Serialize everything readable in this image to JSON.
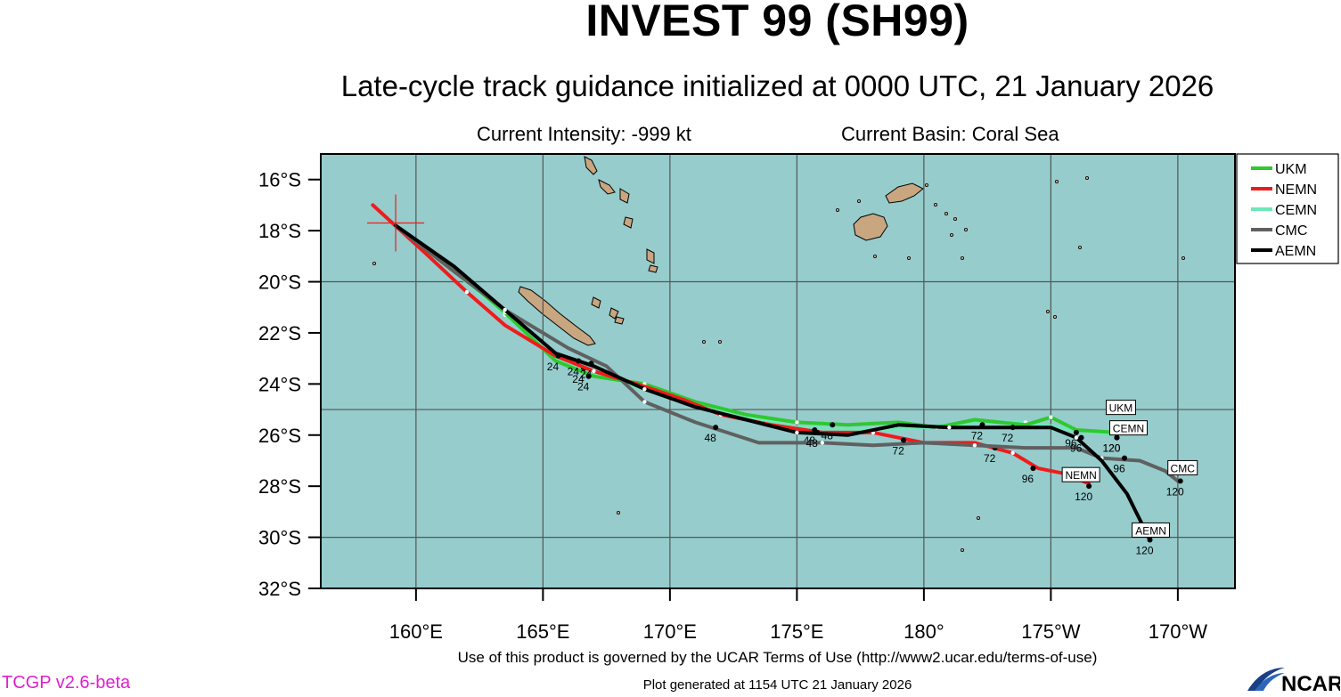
{
  "header": {
    "title": "INVEST 99 (SH99)",
    "subtitle": "Late-cycle track guidance initialized at 0000 UTC, 21 January 2026",
    "current_intensity": "Current Intensity: -999 kt",
    "current_basin": "Current Basin: Coral Sea"
  },
  "footer": {
    "terms": "Use of this product is governed by the UCAR Terms of Use (http://www2.ucar.edu/terms-of-use)",
    "version": "TCGP v2.6-beta",
    "generated": "Plot generated at 1154 UTC   21 January 2026",
    "logo_text": "NCAR"
  },
  "colors": {
    "ocean": "#96cccc",
    "land": "#c8a680",
    "grid": "#555555",
    "version_text": "#e020d0"
  },
  "map": {
    "lon_range": [
      156.25,
      192.25
    ],
    "lat_range": [
      -32.0,
      -15.0
    ],
    "lat_labels": [
      {
        "lat": -16,
        "label": "16°S"
      },
      {
        "lat": -18,
        "label": "18°S"
      },
      {
        "lat": -20,
        "label": "20°S"
      },
      {
        "lat": -22,
        "label": "22°S"
      },
      {
        "lat": -24,
        "label": "24°S"
      },
      {
        "lat": -26,
        "label": "26°S"
      },
      {
        "lat": -28,
        "label": "28°S"
      },
      {
        "lat": -30,
        "label": "30°S"
      },
      {
        "lat": -32,
        "label": "32°S"
      }
    ],
    "lon_labels": [
      {
        "lon": 160,
        "label": "160°E"
      },
      {
        "lon": 165,
        "label": "165°E"
      },
      {
        "lon": 170,
        "label": "170°E"
      },
      {
        "lon": 175,
        "label": "175°E"
      },
      {
        "lon": 180,
        "label": "180°"
      },
      {
        "lon": 185,
        "label": "175°W"
      },
      {
        "lon": 190,
        "label": "170°W"
      }
    ],
    "current_position": {
      "lon": 159.2,
      "lat": -17.7
    }
  },
  "legend": [
    {
      "name": "UKM",
      "color": "#30c830"
    },
    {
      "name": "NEMN",
      "color": "#ee1c1c"
    },
    {
      "name": "CEMN",
      "color": "#6ee8b8"
    },
    {
      "name": "CMC",
      "color": "#606060"
    },
    {
      "name": "AEMN",
      "color": "#000000"
    }
  ],
  "tracks": [
    {
      "name": "CEMN",
      "color": "#6ee8b8",
      "end_label": "CEMN",
      "points": [
        [
          159.2,
          -17.8
        ],
        [
          161.5,
          -19.6
        ],
        [
          163.5,
          -21.3
        ],
        [
          165.5,
          -23.0
        ],
        [
          167,
          -23.6
        ],
        [
          169,
          -24.2
        ],
        [
          172,
          -25.0
        ],
        [
          175,
          -25.7
        ],
        [
          178,
          -25.8
        ],
        [
          180,
          -25.7
        ],
        [
          182,
          -25.5
        ],
        [
          184,
          -25.5
        ],
        [
          186,
          -25.8
        ],
        [
          187.6,
          -26.0
        ]
      ],
      "hour_markers": [
        {
          "hour": 24,
          "lon": 166.6,
          "lat": -23.4,
          "label": "24"
        },
        {
          "hour": 120,
          "lon": 187.6,
          "lat": -26.1,
          "label": "120"
        }
      ]
    },
    {
      "name": "UKM",
      "color": "#30c830",
      "end_label": "UKM",
      "points": [
        [
          159.2,
          -17.8
        ],
        [
          161.5,
          -19.5
        ],
        [
          163.5,
          -21.2
        ],
        [
          165.5,
          -23.1
        ],
        [
          167,
          -23.7
        ],
        [
          169,
          -24.0
        ],
        [
          171,
          -24.7
        ],
        [
          173,
          -25.2
        ],
        [
          175,
          -25.5
        ],
        [
          177,
          -25.6
        ],
        [
          179,
          -25.5
        ],
        [
          180.5,
          -25.7
        ],
        [
          182,
          -25.4
        ],
        [
          184,
          -25.6
        ],
        [
          185,
          -25.3
        ],
        [
          186,
          -25.8
        ],
        [
          187.6,
          -25.9
        ]
      ],
      "hour_markers": [
        {
          "hour": 24,
          "lon": 166.8,
          "lat": -23.7,
          "label": "24"
        },
        {
          "hour": 48,
          "lon": 176.4,
          "lat": -25.6,
          "label": "48"
        },
        {
          "hour": 72,
          "lon": 182.3,
          "lat": -25.6,
          "label": "72"
        },
        {
          "hour": 96,
          "lon": 186.0,
          "lat": -25.9,
          "label": "96"
        },
        {
          "hour": 120,
          "lon": 187.6,
          "lat": -26.1,
          "label": "120"
        }
      ]
    },
    {
      "name": "NEMN",
      "color": "#ee1c1c",
      "end_label": "NEMN",
      "points": [
        [
          158.3,
          -17.0
        ],
        [
          160.5,
          -19.0
        ],
        [
          162,
          -20.4
        ],
        [
          163.5,
          -21.7
        ],
        [
          165.5,
          -22.9
        ],
        [
          167,
          -23.5
        ],
        [
          169,
          -24.1
        ],
        [
          170.5,
          -24.6
        ],
        [
          172,
          -25.2
        ],
        [
          174,
          -25.6
        ],
        [
          176,
          -25.9
        ],
        [
          178,
          -25.9
        ],
        [
          180,
          -26.3
        ],
        [
          182,
          -26.3
        ],
        [
          183.5,
          -26.7
        ],
        [
          184.5,
          -27.3
        ],
        [
          185.5,
          -27.5
        ],
        [
          186.5,
          -27.9
        ]
      ],
      "hour_markers": [
        {
          "hour": 24,
          "lon": 165.6,
          "lat": -22.9,
          "label": "24"
        },
        {
          "hour": 48,
          "lon": 175.7,
          "lat": -25.8,
          "label": "48"
        },
        {
          "hour": 72,
          "lon": 182.8,
          "lat": -26.5,
          "label": "72"
        },
        {
          "hour": 96,
          "lon": 184.3,
          "lat": -27.3,
          "label": "96"
        },
        {
          "hour": 120,
          "lon": 186.5,
          "lat": -28.0,
          "label": "120"
        }
      ]
    },
    {
      "name": "CMC",
      "color": "#606060",
      "end_label": "CMC",
      "points": [
        [
          159.2,
          -17.8
        ],
        [
          161.5,
          -19.6
        ],
        [
          163.5,
          -21.1
        ],
        [
          166,
          -22.6
        ],
        [
          167.5,
          -23.3
        ],
        [
          169,
          -24.7
        ],
        [
          171,
          -25.5
        ],
        [
          173.5,
          -26.3
        ],
        [
          176,
          -26.3
        ],
        [
          178,
          -26.4
        ],
        [
          180,
          -26.3
        ],
        [
          182,
          -26.4
        ],
        [
          184,
          -26.5
        ],
        [
          186,
          -26.5
        ],
        [
          187,
          -26.9
        ],
        [
          188.5,
          -27.0
        ],
        [
          189.5,
          -27.4
        ],
        [
          190,
          -27.8
        ]
      ],
      "hour_markers": [
        {
          "hour": 24,
          "lon": 166.4,
          "lat": -23.1,
          "label": "24"
        },
        {
          "hour": 48,
          "lon": 171.8,
          "lat": -25.7,
          "label": "48"
        },
        {
          "hour": 72,
          "lon": 179.2,
          "lat": -26.2,
          "label": "72"
        },
        {
          "hour": 96,
          "lon": 187.9,
          "lat": -26.9,
          "label": "96"
        },
        {
          "hour": 120,
          "lon": 190.1,
          "lat": -27.8,
          "label": "120"
        }
      ]
    },
    {
      "name": "AEMN",
      "color": "#000000",
      "end_label": "AEMN",
      "points": [
        [
          159.2,
          -17.8
        ],
        [
          161.5,
          -19.4
        ],
        [
          163.5,
          -21.1
        ],
        [
          165.5,
          -22.8
        ],
        [
          167,
          -23.3
        ],
        [
          169,
          -24.2
        ],
        [
          171,
          -24.9
        ],
        [
          173,
          -25.4
        ],
        [
          175,
          -25.9
        ],
        [
          177,
          -26.0
        ],
        [
          179,
          -25.6
        ],
        [
          181,
          -25.7
        ],
        [
          183,
          -25.7
        ],
        [
          185,
          -25.7
        ],
        [
          186,
          -26.1
        ],
        [
          187,
          -27.0
        ],
        [
          188,
          -28.3
        ],
        [
          188.9,
          -30.1
        ]
      ],
      "hour_markers": [
        {
          "hour": 24,
          "lon": 166.9,
          "lat": -23.2,
          "label": "24"
        },
        {
          "hour": 48,
          "lon": 175.8,
          "lat": -25.9,
          "label": "48"
        },
        {
          "hour": 72,
          "lon": 183.5,
          "lat": -25.7,
          "label": "72"
        },
        {
          "hour": 96,
          "lon": 186.2,
          "lat": -26.1,
          "label": "96"
        },
        {
          "hour": 120,
          "lon": 188.9,
          "lat": -30.1,
          "label": "120"
        }
      ]
    }
  ]
}
